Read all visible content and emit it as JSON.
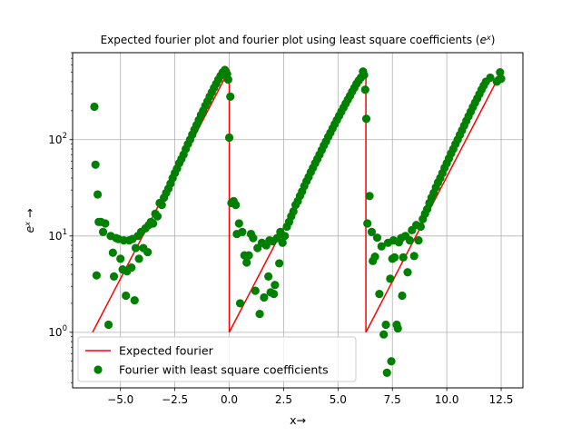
{
  "chart_data": {
    "type": "scatter",
    "title": "Expected fourier plot and fourier plot using least square coefficients (e^x)",
    "xlabel": "x→",
    "ylabel": "e^x →",
    "xlim": [
      -7.2,
      13.5
    ],
    "ylim": [
      0.265,
      800
    ],
    "yscale": "log",
    "grid": true,
    "legend_position": "lower-left",
    "x_ticks": [
      {
        "value": -5.0,
        "label": "−5.0"
      },
      {
        "value": -2.5,
        "label": "−2.5"
      },
      {
        "value": 0.0,
        "label": "0.0"
      },
      {
        "value": 2.5,
        "label": "2.5"
      },
      {
        "value": 5.0,
        "label": "5.0"
      },
      {
        "value": 7.5,
        "label": "7.5"
      },
      {
        "value": 10.0,
        "label": "10.0"
      },
      {
        "value": 12.5,
        "label": "12.5"
      }
    ],
    "y_ticks": [
      {
        "value": 1,
        "base": "10",
        "exp": "0"
      },
      {
        "value": 10,
        "base": "10",
        "exp": "1"
      },
      {
        "value": 100,
        "base": "10",
        "exp": "2"
      }
    ],
    "series": [
      {
        "name": "Expected fourier",
        "kind": "line",
        "color": "#ff0000",
        "segments": [
          {
            "x_start": -6.283,
            "x_end": 0.0
          },
          {
            "x_start": 0.0,
            "x_end": 6.283
          },
          {
            "x_start": 6.283,
            "x_end": 12.566
          }
        ]
      },
      {
        "name": "Fourier with least square coefficients",
        "kind": "scatter",
        "color": "#008000",
        "points": [
          [
            -6.2,
            220
          ],
          [
            -6.15,
            55
          ],
          [
            -6.1,
            3.9
          ],
          [
            -6.05,
            27
          ],
          [
            -6.0,
            14
          ],
          [
            -5.9,
            14
          ],
          [
            -5.8,
            11
          ],
          [
            -5.7,
            13.5
          ],
          [
            -5.55,
            1.2
          ],
          [
            -5.45,
            10
          ],
          [
            -5.35,
            6.7
          ],
          [
            -5.3,
            3.8
          ],
          [
            -5.2,
            9.5
          ],
          [
            -5.1,
            9.3
          ],
          [
            -5.0,
            5.8
          ],
          [
            -4.9,
            4.5
          ],
          [
            -4.85,
            9
          ],
          [
            -4.75,
            2.4
          ],
          [
            -4.7,
            4.3
          ],
          [
            -4.6,
            9
          ],
          [
            -4.5,
            4.7
          ],
          [
            -4.45,
            9.3
          ],
          [
            -4.35,
            2.15
          ],
          [
            -4.3,
            7.5
          ],
          [
            -4.2,
            10
          ],
          [
            -4.15,
            5.8
          ],
          [
            -4.05,
            11
          ],
          [
            -3.95,
            7.5
          ],
          [
            -3.85,
            12
          ],
          [
            -3.75,
            6.8
          ],
          [
            -3.7,
            13
          ],
          [
            -3.6,
            14
          ],
          [
            -3.5,
            13.5
          ],
          [
            -3.4,
            17
          ],
          [
            -3.3,
            16
          ],
          [
            -3.2,
            22
          ],
          [
            -3.1,
            21
          ],
          [
            -3.0,
            25
          ],
          [
            -2.9,
            28
          ],
          [
            -2.8,
            31
          ],
          [
            -2.7,
            35
          ],
          [
            -2.6,
            40
          ],
          [
            -2.5,
            45
          ],
          [
            -2.4,
            50
          ],
          [
            -2.3,
            57
          ],
          [
            -2.2,
            63
          ],
          [
            -2.1,
            70
          ],
          [
            -2.0,
            80
          ],
          [
            -1.9,
            90
          ],
          [
            -1.8,
            100
          ],
          [
            -1.7,
            113
          ],
          [
            -1.6,
            127
          ],
          [
            -1.5,
            142
          ],
          [
            -1.4,
            160
          ],
          [
            -1.3,
            180
          ],
          [
            -1.2,
            200
          ],
          [
            -1.1,
            225
          ],
          [
            -1.0,
            250
          ],
          [
            -0.9,
            280
          ],
          [
            -0.8,
            310
          ],
          [
            -0.7,
            345
          ],
          [
            -0.6,
            380
          ],
          [
            -0.5,
            420
          ],
          [
            -0.4,
            460
          ],
          [
            -0.3,
            500
          ],
          [
            -0.2,
            530
          ],
          [
            -0.1,
            480
          ],
          [
            -0.05,
            420
          ],
          [
            0.0,
            105
          ],
          [
            0.05,
            280
          ],
          [
            0.1,
            22
          ],
          [
            0.2,
            23
          ],
          [
            0.3,
            21
          ],
          [
            0.35,
            10.5
          ],
          [
            0.45,
            13.5
          ],
          [
            0.5,
            2.0
          ],
          [
            0.6,
            11
          ],
          [
            0.7,
            6.3
          ],
          [
            0.8,
            5.3
          ],
          [
            0.9,
            6.3
          ],
          [
            1.0,
            10.5
          ],
          [
            1.1,
            9.5
          ],
          [
            1.2,
            2.7
          ],
          [
            1.3,
            7.5
          ],
          [
            1.4,
            1.55
          ],
          [
            1.5,
            8.5
          ],
          [
            1.6,
            2.3
          ],
          [
            1.7,
            8
          ],
          [
            1.8,
            3.8
          ],
          [
            1.85,
            9
          ],
          [
            1.9,
            2.6
          ],
          [
            2.0,
            8.8
          ],
          [
            2.05,
            2.5
          ],
          [
            2.1,
            3.1
          ],
          [
            2.2,
            9.5
          ],
          [
            2.3,
            5.2
          ],
          [
            2.35,
            11
          ],
          [
            2.45,
            8.5
          ],
          [
            2.55,
            10
          ],
          [
            2.65,
            12.5
          ],
          [
            2.75,
            14
          ],
          [
            2.85,
            16
          ],
          [
            2.95,
            18
          ],
          [
            3.05,
            21
          ],
          [
            3.15,
            23
          ],
          [
            3.25,
            26
          ],
          [
            3.35,
            29
          ],
          [
            3.45,
            33
          ],
          [
            3.55,
            37
          ],
          [
            3.65,
            41
          ],
          [
            3.75,
            46
          ],
          [
            3.85,
            51
          ],
          [
            3.95,
            57
          ],
          [
            4.05,
            63
          ],
          [
            4.15,
            70
          ],
          [
            4.25,
            78
          ],
          [
            4.35,
            87
          ],
          [
            4.45,
            96
          ],
          [
            4.55,
            107
          ],
          [
            4.65,
            118
          ],
          [
            4.75,
            131
          ],
          [
            4.85,
            145
          ],
          [
            4.95,
            160
          ],
          [
            5.05,
            177
          ],
          [
            5.15,
            195
          ],
          [
            5.25,
            215
          ],
          [
            5.35,
            237
          ],
          [
            5.45,
            260
          ],
          [
            5.55,
            285
          ],
          [
            5.65,
            315
          ],
          [
            5.75,
            345
          ],
          [
            5.85,
            380
          ],
          [
            5.95,
            410
          ],
          [
            6.05,
            440
          ],
          [
            6.15,
            510
          ],
          [
            6.2,
            470
          ],
          [
            6.25,
            330
          ],
          [
            6.3,
            165
          ],
          [
            6.35,
            13.5
          ],
          [
            6.45,
            26
          ],
          [
            6.55,
            11
          ],
          [
            6.6,
            5.5
          ],
          [
            6.7,
            6.1
          ],
          [
            6.8,
            9.6
          ],
          [
            6.9,
            2.5
          ],
          [
            7.0,
            7.8
          ],
          [
            7.1,
            0.95
          ],
          [
            7.2,
            1.2
          ],
          [
            7.25,
            0.38
          ],
          [
            7.3,
            8.5
          ],
          [
            7.4,
            3.6
          ],
          [
            7.45,
            0.5
          ],
          [
            7.5,
            5.8
          ],
          [
            7.55,
            9
          ],
          [
            7.6,
            6
          ],
          [
            7.7,
            1.2
          ],
          [
            7.75,
            1.1
          ],
          [
            7.8,
            8.6
          ],
          [
            7.9,
            9.5
          ],
          [
            7.95,
            2.4
          ],
          [
            8.0,
            6
          ],
          [
            8.1,
            10
          ],
          [
            8.2,
            4.2
          ],
          [
            8.3,
            9
          ],
          [
            8.4,
            11.5
          ],
          [
            8.5,
            6.2
          ],
          [
            8.6,
            13
          ],
          [
            8.7,
            9
          ],
          [
            8.8,
            12.5
          ],
          [
            8.9,
            15
          ],
          [
            9.0,
            17
          ],
          [
            9.1,
            19
          ],
          [
            9.2,
            22
          ],
          [
            9.3,
            25
          ],
          [
            9.4,
            28
          ],
          [
            9.5,
            32
          ],
          [
            9.6,
            36
          ],
          [
            9.7,
            40
          ],
          [
            9.8,
            45
          ],
          [
            9.9,
            51
          ],
          [
            10.0,
            57
          ],
          [
            10.1,
            64
          ],
          [
            10.2,
            72
          ],
          [
            10.3,
            80
          ],
          [
            10.4,
            90
          ],
          [
            10.5,
            100
          ],
          [
            10.6,
            112
          ],
          [
            10.7,
            125
          ],
          [
            10.8,
            140
          ],
          [
            10.9,
            157
          ],
          [
            11.0,
            175
          ],
          [
            11.1,
            195
          ],
          [
            11.2,
            218
          ],
          [
            11.3,
            242
          ],
          [
            11.4,
            268
          ],
          [
            11.5,
            297
          ],
          [
            11.6,
            330
          ],
          [
            11.7,
            365
          ],
          [
            11.8,
            400
          ],
          [
            12.0,
            440
          ],
          [
            12.3,
            400
          ],
          [
            12.4,
            420
          ],
          [
            12.45,
            500
          ],
          [
            12.5,
            430
          ]
        ]
      }
    ]
  }
}
